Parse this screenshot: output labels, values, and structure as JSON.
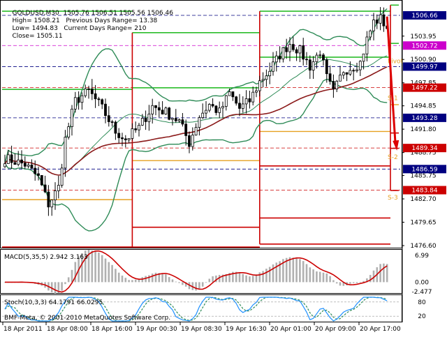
{
  "header": {
    "symbol_line": "GOLDUSD,M30",
    "ohlc_line": "1505.76 1506.51 1505.56 1506.46",
    "high": "High= 1508.21",
    "low": "Low= 1494.83",
    "close": "Close= 1505.11",
    "prev_range": "Previous Days Range= 13.38",
    "curr_range": "Current Days Range= 210"
  },
  "footer": {
    "copyright": "BMF-Meta, © 2001-2010 MetaQuotes Software Corp."
  },
  "colors": {
    "background": "#ffffff",
    "candle": "#000000",
    "bollinger": "#2e8b57",
    "moving_average": "#8b1a1a",
    "pivot_orange": "#e6a020",
    "level_red": "#cc0000",
    "level_green": "#2cbd2c",
    "dashed_blue": "#000080",
    "dashed_red": "#cc0000",
    "dashed_magenta": "#cc00cc",
    "macd_hist": "#b0b0b0",
    "macd_signal": "#cc0000",
    "stoch_main": "#1e90ff",
    "stoch_signal": "#2e8b57",
    "arrow": "#dd0000"
  },
  "chart_data": [
    {
      "type": "candlestick",
      "panel": "main",
      "ylim": [
        1476.6,
        1508.3
      ],
      "y_ticks": [
        "1503.95",
        "1500.90",
        "1497.85",
        "1494.85",
        "1491.80",
        "1488.75",
        "1485.75",
        "1482.70",
        "1479.65",
        "1476.60"
      ],
      "x_ticks": [
        "18 Apr 2011",
        "18 Apr 08:00",
        "18 Apr 16:00",
        "19 Apr 00:30",
        "19 Apr 08:30",
        "19 Apr 16:30",
        "20 Apr 01:00",
        "20 Apr 09:00",
        "20 Apr 17:00"
      ],
      "price_tags": [
        {
          "label": "1506.66",
          "value": 1506.66,
          "style": "dark"
        },
        {
          "label": "1502.72",
          "value": 1502.72,
          "style": "magenta"
        },
        {
          "label": "1499.97",
          "value": 1499.97,
          "style": "navy"
        },
        {
          "label": "1497.22",
          "value": 1497.22,
          "style": "red"
        },
        {
          "label": "1493.28",
          "value": 1493.28,
          "style": "navy"
        },
        {
          "label": "1489.34",
          "value": 1489.34,
          "style": "red"
        },
        {
          "label": "1486.59",
          "value": 1486.59,
          "style": "navy"
        },
        {
          "label": "1483.84",
          "value": 1483.84,
          "style": "red"
        }
      ],
      "level_labels": [
        "Pivot",
        "S-1",
        "S-2",
        "S-3"
      ],
      "close_series_keypoints": [
        [
          0,
          1488.0
        ],
        [
          6,
          1487.2
        ],
        [
          10,
          1485.5
        ],
        [
          13,
          1482.0
        ],
        [
          16,
          1484.2
        ],
        [
          18,
          1490.5
        ],
        [
          21,
          1495.5
        ],
        [
          25,
          1496.8
        ],
        [
          29,
          1494.5
        ],
        [
          33,
          1491.5
        ],
        [
          36,
          1490.5
        ],
        [
          40,
          1492.0
        ],
        [
          44,
          1494.8
        ],
        [
          48,
          1494.0
        ],
        [
          52,
          1492.8
        ],
        [
          55,
          1490.0
        ],
        [
          58,
          1493.5
        ],
        [
          61,
          1495.0
        ],
        [
          64,
          1494.0
        ],
        [
          67,
          1496.5
        ],
        [
          70,
          1494.5
        ],
        [
          73,
          1495.5
        ],
        [
          76,
          1498.0
        ],
        [
          79,
          1499.5
        ],
        [
          82,
          1501.5
        ],
        [
          85,
          1503.0
        ],
        [
          88,
          1502.0
        ],
        [
          91,
          1500.0
        ],
        [
          94,
          1502.0
        ],
        [
          96,
          1498.5
        ],
        [
          98,
          1496.5
        ],
        [
          101,
          1499.5
        ],
        [
          104,
          1500.0
        ],
        [
          106,
          1500.5
        ],
        [
          108,
          1503.5
        ],
        [
          110,
          1505.8
        ],
        [
          112,
          1506.2
        ],
        [
          114,
          1505.1
        ]
      ]
    },
    {
      "type": "bar",
      "panel": "macd",
      "title": "MACD(5,35,5) 2.942 3.163",
      "y_ticks": [
        "6.99",
        "0.00",
        "-2.477"
      ],
      "ylim": [
        -2.477,
        6.99
      ]
    },
    {
      "type": "line",
      "panel": "stochastic",
      "title": "Stoch(10,3,3) 64.1791 66.0295",
      "y_ticks": [
        "80",
        "20"
      ],
      "ylim": [
        0,
        100
      ]
    }
  ]
}
